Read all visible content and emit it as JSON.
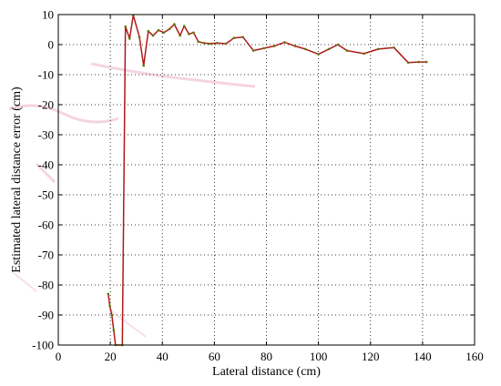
{
  "chart_data": {
    "type": "line",
    "title": "",
    "xlabel": "Lateral distance (cm)",
    "ylabel": "Estimated lateral distance error (cm)",
    "xlim": [
      0,
      160
    ],
    "ylim": [
      -100,
      10
    ],
    "x_ticks": [
      0,
      20,
      40,
      60,
      80,
      100,
      120,
      140,
      160
    ],
    "y_ticks": [
      10,
      0,
      -10,
      -20,
      -30,
      -40,
      -50,
      -60,
      -70,
      -80,
      -90,
      -100
    ],
    "grid": true,
    "grid_style": "dotted",
    "colors": {
      "line": "#b01818",
      "marker": "#5a7a00",
      "grid": "#000000",
      "axes": "#000000",
      "ghost": "#f3c9dc"
    },
    "series": [
      {
        "x": [
          19.2,
          19.8,
          20.6,
          21.3,
          22.0,
          24.6,
          25.8,
          27.4,
          28.8,
          31.2,
          32.8,
          34.6,
          36.4,
          38.5,
          40.6,
          42.8,
          44.6,
          46.8,
          48.4,
          50.2,
          52.0,
          53.8,
          56.0,
          58.2,
          61.0,
          64.5,
          67.5,
          71.0,
          75.0,
          79.0,
          83.0,
          87.0,
          91.0,
          95.0,
          100.0,
          104.0,
          107.5,
          111.0,
          117.5,
          123.0,
          129.0,
          134.5,
          138.5,
          141.5
        ],
        "y": [
          -83.0,
          -87.0,
          -90.0,
          -95.0,
          -100.0,
          -100.0,
          6.0,
          2.0,
          9.8,
          2.5,
          -7.0,
          4.5,
          3.0,
          4.8,
          4.0,
          5.2,
          6.8,
          3.0,
          6.2,
          3.5,
          4.0,
          1.0,
          0.5,
          0.3,
          0.5,
          0.3,
          2.2,
          2.5,
          -2.0,
          -1.2,
          -0.5,
          0.8,
          -0.5,
          -1.5,
          -3.2,
          -1.5,
          0.0,
          -2.0,
          -3.0,
          -1.5,
          -1.0,
          -6.0,
          -5.8,
          -5.8
        ]
      }
    ]
  }
}
